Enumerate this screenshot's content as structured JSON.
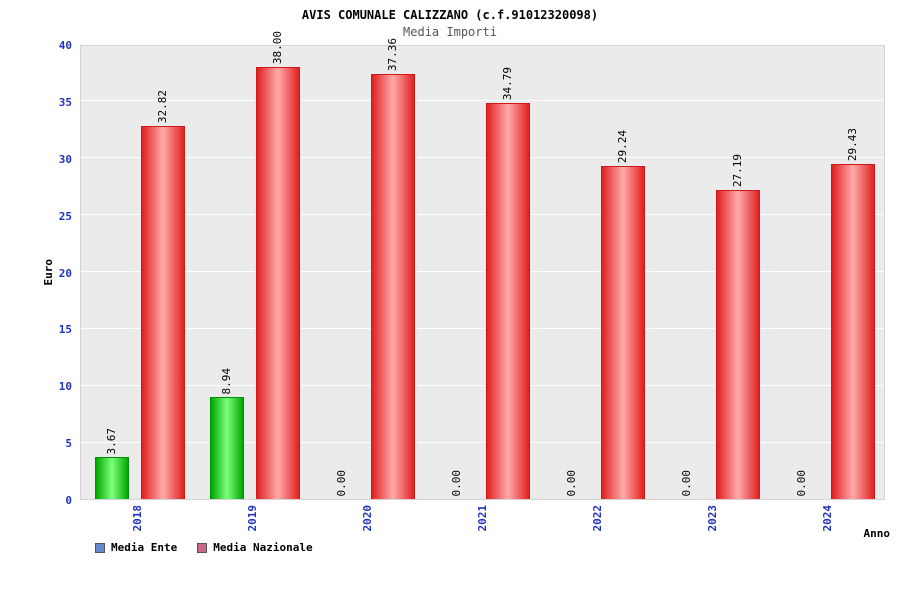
{
  "title": "AVIS COMUNALE CALIZZANO (c.f.91012320098)",
  "subtitle": "Media Importi",
  "legend": [
    {
      "label": "Media Ente",
      "color": "#6688cc"
    },
    {
      "label": "Media Nazionale",
      "color": "#cc6688"
    }
  ],
  "chart_data": {
    "type": "bar",
    "title": "AVIS COMUNALE CALIZZANO (c.f.91012320098)",
    "subtitle": "Media Importi",
    "xlabel": "Anno",
    "ylabel": "Euro",
    "categories": [
      "2018",
      "2019",
      "2020",
      "2021",
      "2022",
      "2023",
      "2024"
    ],
    "series": [
      {
        "name": "Media Ente",
        "values": [
          3.67,
          8.94,
          0.0,
          0.0,
          0.0,
          0.0,
          0.0
        ],
        "labels": [
          "3.67",
          "8.94",
          "0.00",
          "0.00",
          "0.00",
          "0.00",
          "0.00"
        ],
        "color": "#00a800",
        "color_light": "#7dff7d",
        "border_color": "#009000"
      },
      {
        "name": "Media Nazionale",
        "values": [
          32.82,
          38.0,
          37.36,
          34.79,
          29.24,
          27.19,
          29.43
        ],
        "labels": [
          "32.82",
          "38.00",
          "37.36",
          "34.79",
          "29.24",
          "27.19",
          "29.43"
        ],
        "color": "#e02020",
        "color_light": "#ffaaaa",
        "border_color": "#cc1a1a"
      }
    ],
    "ylim": [
      0,
      40
    ],
    "ytick_step": 5,
    "yticks": [
      0,
      5,
      10,
      15,
      20,
      25,
      30,
      35,
      40
    ],
    "grid": true,
    "plot_background": "#ebebeb",
    "gridline_color": "#ffffff",
    "tick_label_color": "#2233bb",
    "legend_position": "bottom-left",
    "bar_value_labels_rotated": true
  }
}
